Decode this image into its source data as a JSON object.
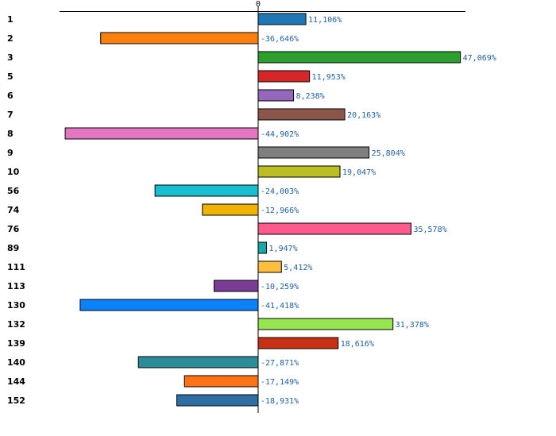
{
  "chart_data": {
    "type": "bar",
    "orientation": "horizontal",
    "categories": [
      "1",
      "2",
      "3",
      "5",
      "6",
      "7",
      "8",
      "9",
      "10",
      "56",
      "74",
      "76",
      "89",
      "111",
      "113",
      "130",
      "132",
      "139",
      "140",
      "144",
      "152"
    ],
    "values": [
      11.106,
      -36.646,
      47.069,
      11.953,
      8.238,
      20.163,
      -44.902,
      25.804,
      19.047,
      -24.003,
      -12.966,
      35.578,
      1.947,
      5.412,
      -10.259,
      -41.418,
      31.378,
      18.616,
      -27.871,
      -17.149,
      -18.931
    ],
    "value_labels": [
      "11,106%",
      "-36,646%",
      "47,069%",
      "11,953%",
      "8,238%",
      "20,163%",
      "-44,902%",
      "25,804%",
      "19,047%",
      "-24,003%",
      "-12,966%",
      "35,578%",
      "1,947%",
      "5,412%",
      "-10,259%",
      "-41,418%",
      "31,378%",
      "18,616%",
      "-27,871%",
      "-17,149%",
      "-18,931%"
    ],
    "colors": [
      "#1f77b4",
      "#ff7f0e",
      "#2ca02c",
      "#d62728",
      "#9467bd",
      "#8c564b",
      "#e377c2",
      "#7f7f7f",
      "#bcbd22",
      "#17becf",
      "#f0b400",
      "#ff5a8c",
      "#17a8a8",
      "#ffbe3c",
      "#7b3c96",
      "#0a82ff",
      "#96e650",
      "#c83214",
      "#2d8c9b",
      "#ff7314",
      "#2d6ea5"
    ],
    "x_tick_label": "0",
    "xlim": [
      -45.8,
      48.4
    ],
    "grid": false,
    "legend": "none"
  }
}
